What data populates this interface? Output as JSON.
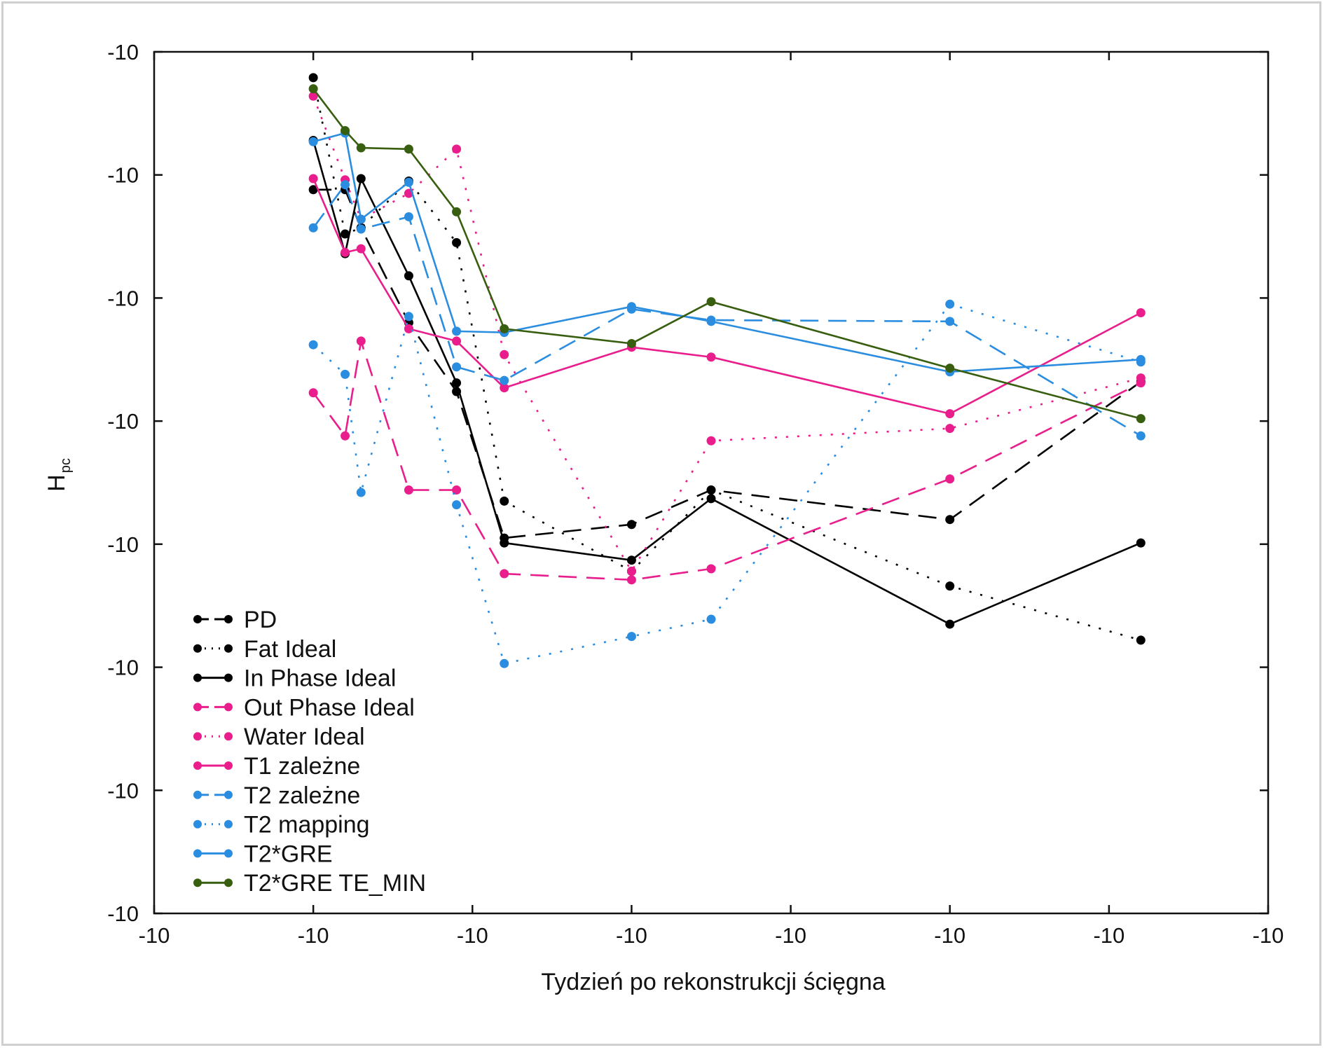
{
  "chart_data": {
    "type": "line",
    "title": "",
    "xlabel": "Tydzień po rekonstrukcji ścięgna",
    "ylabel_main": "H",
    "ylabel_sub": "pc",
    "x_tick_labels": [
      "-10",
      "-10",
      "-10",
      "-10",
      "-10",
      "-10",
      "-10",
      "-10"
    ],
    "y_tick_labels": [
      "-10",
      "-10",
      "-10",
      "-10",
      "-10",
      "-10",
      "-10",
      "-10"
    ],
    "xlim": [
      0,
      7
    ],
    "ylim": [
      0,
      7
    ],
    "x": [
      1,
      1.2,
      1.3,
      1.6,
      1.9,
      2.2,
      3,
      3.5,
      5,
      6.2
    ],
    "legend_position": "lower-left",
    "grid": false,
    "series": [
      {
        "name": "PD",
        "color": "#000000",
        "dash": "26,14",
        "values": [
          5.88,
          5.88,
          5.57,
          4.8,
          4.24,
          3.05,
          3.16,
          3.44,
          3.2,
          4.32
        ]
      },
      {
        "name": "Fat Ideal",
        "color": "#000000",
        "dash": "3,13",
        "values": [
          6.79,
          5.52,
          5.57,
          5.95,
          5.45,
          3.35,
          2.78,
          3.44,
          2.66,
          2.22
        ]
      },
      {
        "name": "In Phase Ideal",
        "color": "#000000",
        "dash": "",
        "values": [
          6.28,
          5.36,
          5.97,
          5.18,
          4.31,
          3.01,
          2.87,
          3.37,
          2.35,
          3.01
        ]
      },
      {
        "name": "Out Phase Ideal",
        "color": "#e91e8c",
        "dash": "26,14",
        "values": [
          4.23,
          3.88,
          4.65,
          3.44,
          3.44,
          2.76,
          2.71,
          2.8,
          3.53,
          4.31
        ]
      },
      {
        "name": "Water Ideal",
        "color": "#e91e8c",
        "dash": "3,13",
        "values": [
          6.64,
          5.96,
          5.64,
          5.85,
          6.21,
          4.54,
          2.78,
          3.84,
          3.94,
          4.35
        ]
      },
      {
        "name": "T1 zależne",
        "color": "#e91e8c",
        "dash": "",
        "values": [
          5.97,
          5.37,
          5.4,
          4.75,
          4.65,
          4.27,
          4.6,
          4.52,
          4.06,
          4.88
        ]
      },
      {
        "name": "T2 zależne",
        "color": "#2a8de0",
        "dash": "26,14",
        "values": [
          5.57,
          5.92,
          5.56,
          5.66,
          4.44,
          4.33,
          4.91,
          4.82,
          4.81,
          3.88
        ]
      },
      {
        "name": "T2 mapping",
        "color": "#2a8de0",
        "dash": "3,13",
        "values": [
          4.62,
          4.38,
          3.42,
          4.85,
          3.32,
          2.03,
          2.25,
          2.39,
          4.95,
          4.48
        ]
      },
      {
        "name": "T2*GRE",
        "color": "#2a8de0",
        "dash": "",
        "values": [
          6.27,
          6.34,
          5.64,
          5.94,
          4.73,
          4.72,
          4.93,
          4.81,
          4.4,
          4.5
        ]
      },
      {
        "name": "T2*GRE TE_MIN",
        "color": "#385e0f",
        "dash": "",
        "values": [
          6.7,
          6.36,
          6.22,
          6.21,
          5.7,
          4.75,
          4.63,
          4.97,
          4.43,
          4.02
        ]
      }
    ]
  }
}
